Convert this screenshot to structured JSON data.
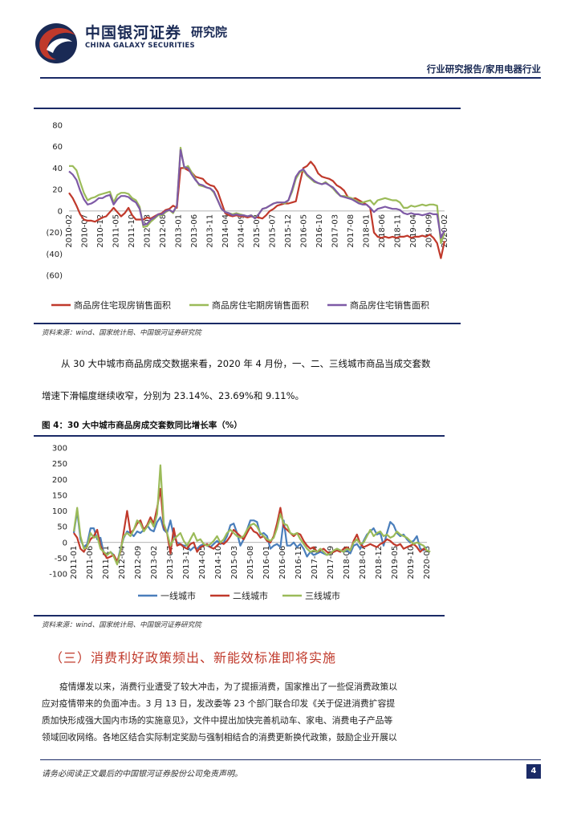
{
  "header": {
    "company_cn": "中国银河证券",
    "company_en": "CHINA GALAXY SECURITIES",
    "dept": "研究院",
    "report_type": "行业研究报告/家用电器行业"
  },
  "chart1": {
    "source": "资料来源：wind、国家统计局、中国银河证券研究院"
  },
  "paragraph1": {
    "line1": "从 30 大中城市商品房成交数据来看，2020 年 4 月份，一、二、三线城市商品当成交套数",
    "line2": "增速下滑幅度继续收窄，分别为 23.14%、23.69%和 9.11%。"
  },
  "chart2": {
    "title": "图 4：30 大中城市商品房成交套数同比增长率（%）",
    "source": "资料来源：wind、国家统计局、中国银河证券研究院"
  },
  "section3": {
    "heading": "（三）消费利好政策频出、新能效标准即将实施",
    "lines": [
      "疫情爆发以来，消费行业遭受了较大冲击，为了提振消费，国家推出了一些促消费政策以",
      "应对疫情带来的负面冲击。3 月 13 日，发改委等 23 个部门联合印发《关于促进消费扩容提",
      "质加快形成强大国内市场的实施意见》，文件中提出加快完善机动车、家电、消费电子产品等",
      "领域回收网络。各地区结合实际制定奖励与强制相结合的消费更新换代政策，鼓励企业开展以"
    ]
  },
  "footer": {
    "disclaimer": "请务必阅读正文最后的中国银河证券股份公司免责声明。",
    "page": "4"
  },
  "colors": {
    "navy": "#1a2a66",
    "red_series": "#c0392b",
    "green_series": "#9bbb59",
    "purple_series": "#7e5aa6",
    "blue_series": "#4a7ebb"
  },
  "chart_data": [
    {
      "type": "line",
      "title": "",
      "ylim": [
        -60,
        80
      ],
      "y_ticks": [
        "80",
        "60",
        "40",
        "20",
        "0",
        "(20)",
        "(40)",
        "(60)"
      ],
      "y_tick_values": [
        80,
        60,
        40,
        20,
        0,
        -20,
        -40,
        -60
      ],
      "x_tick_labels": [
        "2010-02",
        "2010-07",
        "2010-12",
        "2011-05",
        "2011-10",
        "2012-03",
        "2012-08",
        "2013-01",
        "2013-06",
        "2013-11",
        "2014-04",
        "2014-09",
        "2015-02",
        "2015-07",
        "2015-12",
        "2016-05",
        "2016-10",
        "2017-03",
        "2017-08",
        "2018-01",
        "2018-06",
        "2018-11",
        "2019-04",
        "2019-09",
        "2020-02"
      ],
      "legend_position": "bottom",
      "series": [
        {
          "name": "商品房住宅现房销售面积",
          "color": "#c0392b",
          "values": [
            17,
            12,
            5,
            -3,
            -8,
            -9,
            -9,
            -10,
            -8,
            -6,
            -5,
            -1,
            3,
            -1,
            -5,
            -2,
            3,
            -4,
            -8,
            -8,
            -8,
            -6,
            -7,
            -5,
            -3,
            -2,
            1,
            2,
            5,
            3,
            40,
            40,
            38,
            36,
            32,
            31,
            30,
            26,
            24,
            23,
            18,
            8,
            -2,
            -4,
            -5,
            -4,
            -5,
            -5,
            -6,
            -5,
            -6,
            -6,
            -7,
            -4,
            0,
            2,
            5,
            6,
            7,
            7,
            8,
            9,
            25,
            40,
            42,
            46,
            42,
            35,
            32,
            31,
            30,
            28,
            24,
            22,
            19,
            13,
            11,
            12,
            10,
            8,
            6,
            3,
            -20,
            -24,
            -25,
            -24,
            -25,
            -24,
            -25,
            -24,
            -24,
            -23,
            -25,
            -24,
            -24,
            -23,
            -24,
            -22,
            -25,
            -30,
            -44,
            -28
          ]
        },
        {
          "name": "商品房住宅期房销售面积",
          "color": "#9bbb59",
          "values": [
            42,
            42,
            38,
            27,
            17,
            10,
            12,
            13,
            15,
            16,
            17,
            18,
            8,
            15,
            17,
            17,
            16,
            12,
            10,
            4,
            -15,
            -14,
            -10,
            -7,
            -4,
            -4,
            -1,
            1,
            -2,
            5,
            59,
            40,
            42,
            36,
            30,
            24,
            23,
            22,
            21,
            17,
            10,
            2,
            -1,
            -2,
            -3,
            -2,
            -3,
            -4,
            -5,
            -4,
            -6,
            -3,
            2,
            3,
            5,
            7,
            8,
            8,
            7,
            10,
            18,
            30,
            36,
            38,
            33,
            30,
            27,
            26,
            25,
            27,
            24,
            21,
            17,
            14,
            14,
            13,
            12,
            10,
            8,
            8,
            9,
            10,
            6,
            10,
            11,
            12,
            11,
            10,
            10,
            8,
            3,
            3,
            5,
            4,
            5,
            6,
            5,
            6,
            6,
            5,
            -30,
            -20
          ]
        },
        {
          "name": "商品房住宅销售面积",
          "color": "#7e5aa6",
          "values": [
            37,
            34,
            29,
            19,
            11,
            6,
            7,
            9,
            12,
            12,
            14,
            15,
            6,
            11,
            14,
            14,
            13,
            10,
            8,
            2,
            -13,
            -12,
            -8,
            -6,
            -3,
            -3,
            0,
            1,
            -1,
            5,
            57,
            41,
            40,
            34,
            29,
            25,
            24,
            22,
            21,
            18,
            10,
            2,
            -1,
            -2,
            -4,
            -3,
            -4,
            -4,
            -5,
            -4,
            -7,
            -3,
            2,
            3,
            5,
            7,
            8,
            8,
            8,
            10,
            20,
            32,
            37,
            39,
            34,
            31,
            28,
            26,
            25,
            26,
            24,
            22,
            18,
            14,
            13,
            12,
            11,
            9,
            7,
            6,
            6,
            3,
            -1,
            2,
            3,
            4,
            3,
            2,
            2,
            1,
            -2,
            -3,
            -2,
            -3,
            -3,
            -4,
            -3,
            -2,
            -3,
            -3,
            -25,
            -18
          ]
        }
      ]
    },
    {
      "type": "line",
      "title": "30 大中城市商品房成交套数同比增长率（%）",
      "ylim": [
        -100,
        300
      ],
      "y_ticks": [
        "300",
        "250",
        "200",
        "150",
        "100",
        "50",
        "0",
        "-50",
        "-100"
      ],
      "y_tick_values": [
        300,
        250,
        200,
        150,
        100,
        50,
        0,
        -50,
        -100
      ],
      "x_tick_labels": [
        "2011-01",
        "2011-06",
        "2011-11",
        "2012-04",
        "2012-09",
        "2013-02",
        "2013-07",
        "2013-12",
        "2014-05",
        "2014-10",
        "2015-03",
        "2015-08",
        "2016-01",
        "2016-06",
        "2016-11",
        "2017-04",
        "2017-09",
        "2018-02",
        "2018-07",
        "2018-12",
        "2019-05",
        "2019-10",
        "2020-03"
      ],
      "legend_position": "bottom",
      "series": [
        {
          "name": "一线城市",
          "color": "#4a7ebb",
          "values": [
            30,
            100,
            10,
            -15,
            -5,
            45,
            45,
            10,
            15,
            -35,
            -40,
            -30,
            -40,
            -65,
            -20,
            15,
            35,
            30,
            20,
            35,
            30,
            40,
            55,
            40,
            35,
            65,
            80,
            40,
            30,
            70,
            20,
            0,
            -5,
            -10,
            -10,
            -25,
            -15,
            -20,
            -10,
            -5,
            -10,
            -15,
            -5,
            5,
            -5,
            0,
            20,
            55,
            60,
            30,
            -10,
            10,
            40,
            70,
            70,
            65,
            25,
            30,
            20,
            -20,
            -10,
            -5,
            -15,
            70,
            -10,
            -10,
            0,
            -15,
            -5,
            -20,
            -45,
            -30,
            -40,
            -35,
            -30,
            -35,
            -40,
            -35,
            -30,
            -20,
            -25,
            -30,
            -25,
            -35,
            -10,
            -5,
            -20,
            5,
            25,
            35,
            45,
            25,
            30,
            -10,
            30,
            65,
            55,
            30,
            20,
            25,
            10,
            0,
            5,
            20,
            -20,
            -25,
            -15
          ]
        },
        {
          "name": "二线城市",
          "color": "#c0392b",
          "values": [
            30,
            15,
            -20,
            -30,
            -10,
            10,
            20,
            40,
            -10,
            -35,
            -50,
            -45,
            -40,
            -60,
            -30,
            35,
            100,
            30,
            40,
            60,
            70,
            40,
            55,
            80,
            60,
            110,
            170,
            50,
            30,
            -35,
            45,
            -10,
            -5,
            -15,
            -20,
            -5,
            0,
            -30,
            -15,
            -10,
            -5,
            -15,
            -20,
            -10,
            0,
            -5,
            5,
            20,
            40,
            30,
            20,
            10,
            30,
            50,
            35,
            30,
            15,
            20,
            5,
            0,
            20,
            60,
            110,
            50,
            40,
            30,
            20,
            30,
            25,
            5,
            -10,
            -20,
            -15,
            -30,
            -25,
            -20,
            -30,
            -35,
            -30,
            -25,
            -30,
            -20,
            -15,
            -25,
            5,
            25,
            -5,
            -15,
            -10,
            -5,
            -10,
            -15,
            -5,
            0,
            10,
            5,
            -5,
            -10,
            -5,
            -20,
            -15,
            -10,
            -5,
            -15,
            -30,
            -20,
            -25
          ]
        },
        {
          "name": "三线城市",
          "color": "#9bbb59",
          "values": [
            35,
            110,
            20,
            -20,
            -15,
            30,
            15,
            20,
            -20,
            -30,
            -40,
            -30,
            -45,
            -70,
            -25,
            20,
            30,
            20,
            40,
            70,
            60,
            35,
            50,
            70,
            50,
            90,
            245,
            60,
            30,
            -10,
            10,
            20,
            30,
            5,
            -10,
            10,
            30,
            5,
            10,
            -5,
            -10,
            -5,
            5,
            20,
            0,
            10,
            30,
            40,
            30,
            20,
            15,
            20,
            40,
            55,
            60,
            50,
            30,
            20,
            10,
            5,
            15,
            45,
            90,
            60,
            55,
            30,
            25,
            30,
            10,
            -5,
            -20,
            -30,
            -25,
            -30,
            -20,
            -30,
            -40,
            -35,
            -25,
            -20,
            -25,
            -30,
            -20,
            -25,
            0,
            10,
            -5,
            0,
            20,
            40,
            20,
            30,
            35,
            20,
            25,
            15,
            20,
            35,
            25,
            20,
            15,
            5,
            -5,
            0,
            -5,
            -10,
            -25,
            -30
          ]
        }
      ]
    }
  ]
}
